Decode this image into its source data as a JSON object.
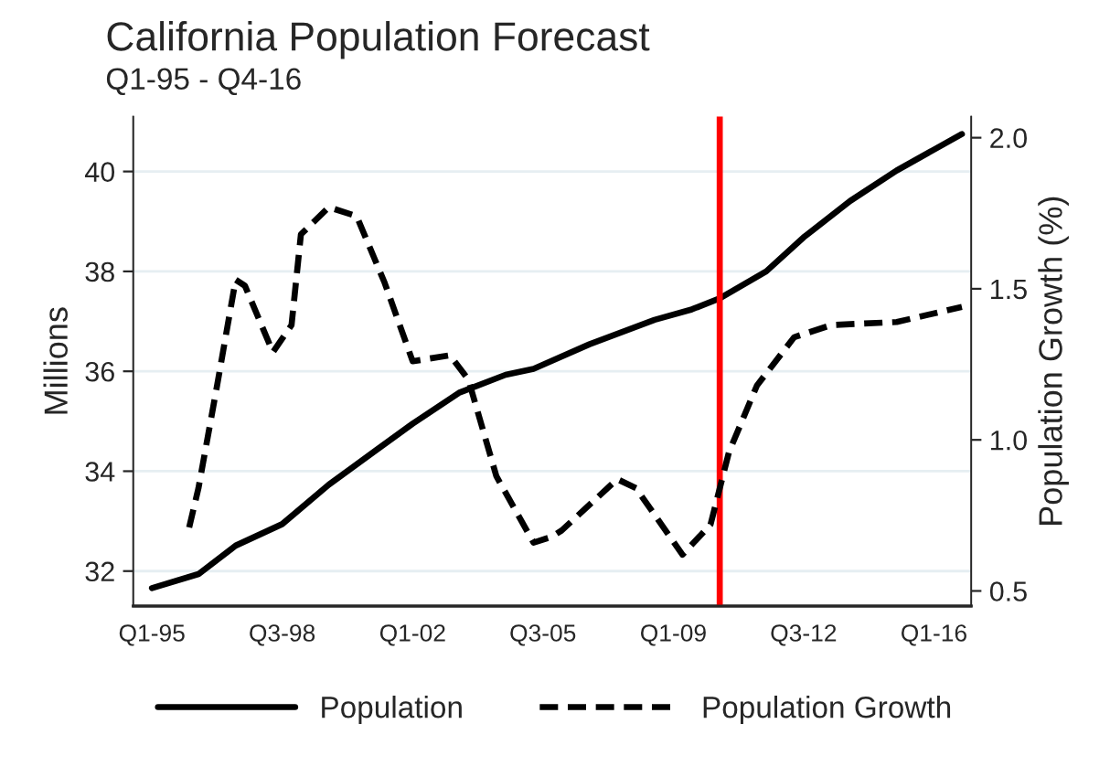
{
  "chart_data": {
    "type": "line",
    "title": "California Population Forecast",
    "subtitle": "Q1-95 - Q4-16",
    "ylabel": "Millions",
    "y2label": "Population Growth (%)",
    "xlim": [
      "1994-07",
      "2017-01"
    ],
    "xticks": [
      {
        "value": "1995-01",
        "label": "Q1-95"
      },
      {
        "value": "1998-07",
        "label": "Q3-98"
      },
      {
        "value": "2002-01",
        "label": "Q1-02"
      },
      {
        "value": "2005-07",
        "label": "Q3-05"
      },
      {
        "value": "2009-01",
        "label": "Q1-09"
      },
      {
        "value": "2012-07",
        "label": "Q3-12"
      },
      {
        "value": "2016-01",
        "label": "Q1-16"
      }
    ],
    "ylim": [
      31.3,
      41.1
    ],
    "yticks": [
      32,
      34,
      36,
      38,
      40
    ],
    "y2lim": [
      0.45,
      2.07
    ],
    "y2ticks": [
      {
        "value": 0.5,
        "label": "0.5"
      },
      {
        "value": 1.0,
        "label": "1.0"
      },
      {
        "value": 1.5,
        "label": "1.5"
      },
      {
        "value": 2.0,
        "label": "2.0"
      }
    ],
    "grid": "y",
    "legend": "bottom",
    "ref_lines": [
      {
        "axis": "x",
        "value": "2010-04",
        "color": "#ff0000"
      }
    ],
    "series": [
      {
        "name": "Population",
        "color": "#000000",
        "line_style": "solid",
        "x": [
          "1995-01",
          "1996-04",
          "1997-04",
          "1998-07",
          "1999-10",
          "2001-01",
          "2002-01",
          "2003-04",
          "2004-07",
          "2005-04",
          "2006-10",
          "2008-07",
          "2009-07",
          "2010-04",
          "2011-07",
          "2012-07",
          "2013-10",
          "2015-01",
          "2016-10"
        ],
        "values": [
          31.66,
          31.94,
          32.51,
          32.94,
          33.73,
          34.41,
          34.95,
          35.57,
          35.93,
          36.05,
          36.54,
          37.03,
          37.24,
          37.46,
          38.0,
          38.68,
          39.41,
          40.02,
          40.75
        ]
      },
      {
        "name": "Population Growth",
        "color": "#000000",
        "line_style": "dashed",
        "axis": "y2",
        "x": [
          "1996-01",
          "1996-04",
          "1996-10",
          "1997-04",
          "1997-07",
          "1998-04",
          "1998-10",
          "1999-01",
          "1999-10",
          "2000-07",
          "2001-04",
          "2002-01",
          "2003-01",
          "2003-07",
          "2004-04",
          "2005-04",
          "2005-10",
          "2006-01",
          "2007-07",
          "2008-01",
          "2009-04",
          "2010-01",
          "2010-07",
          "2011-04",
          "2012-04",
          "2013-04",
          "2015-01",
          "2016-10"
        ],
        "values": [
          0.71,
          0.84,
          1.18,
          1.53,
          1.51,
          1.29,
          1.38,
          1.68,
          1.77,
          1.74,
          1.52,
          1.26,
          1.28,
          1.2,
          0.88,
          0.66,
          0.68,
          0.7,
          0.87,
          0.84,
          0.62,
          0.72,
          0.96,
          1.18,
          1.34,
          1.38,
          1.39,
          1.44
        ]
      }
    ]
  }
}
